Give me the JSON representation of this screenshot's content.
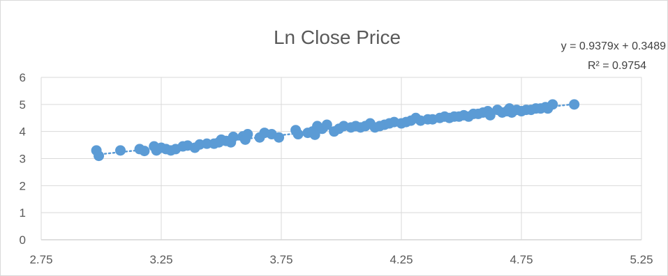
{
  "chart_data": {
    "type": "scatter",
    "title": "Ln Close Price",
    "xlabel": "",
    "ylabel": "",
    "xlim": [
      2.75,
      5.25
    ],
    "ylim": [
      0,
      6
    ],
    "x_ticks": [
      "2.75",
      "3.25",
      "3.75",
      "4.25",
      "4.75",
      "5.25"
    ],
    "y_ticks": [
      "0",
      "1",
      "2",
      "3",
      "4",
      "5",
      "6"
    ],
    "grid": true,
    "legend": "none",
    "series": [
      {
        "color": "#5b9bd5",
        "trendline": {
          "type": "linear",
          "slope": 0.9379,
          "intercept": 0.3489,
          "style": "dotted",
          "equation_label": "y = 0.9379x + 0.3489",
          "r2_label": "R² = 0.9754"
        },
        "points": [
          [
            2.98,
            3.3
          ],
          [
            2.99,
            3.1
          ],
          [
            3.08,
            3.3
          ],
          [
            3.16,
            3.35
          ],
          [
            3.18,
            3.28
          ],
          [
            3.22,
            3.45
          ],
          [
            3.23,
            3.3
          ],
          [
            3.25,
            3.4
          ],
          [
            3.27,
            3.35
          ],
          [
            3.29,
            3.3
          ],
          [
            3.31,
            3.35
          ],
          [
            3.34,
            3.45
          ],
          [
            3.36,
            3.48
          ],
          [
            3.39,
            3.4
          ],
          [
            3.41,
            3.52
          ],
          [
            3.44,
            3.55
          ],
          [
            3.47,
            3.55
          ],
          [
            3.49,
            3.6
          ],
          [
            3.5,
            3.7
          ],
          [
            3.52,
            3.65
          ],
          [
            3.54,
            3.6
          ],
          [
            3.55,
            3.8
          ],
          [
            3.59,
            3.82
          ],
          [
            3.6,
            3.7
          ],
          [
            3.61,
            3.9
          ],
          [
            3.66,
            3.78
          ],
          [
            3.68,
            3.95
          ],
          [
            3.71,
            3.9
          ],
          [
            3.74,
            3.78
          ],
          [
            3.81,
            4.05
          ],
          [
            3.82,
            3.9
          ],
          [
            3.86,
            3.95
          ],
          [
            3.88,
            4.0
          ],
          [
            3.89,
            3.88
          ],
          [
            3.9,
            4.2
          ],
          [
            3.92,
            4.1
          ],
          [
            3.94,
            4.25
          ],
          [
            3.97,
            4.0
          ],
          [
            3.99,
            4.1
          ],
          [
            4.01,
            4.2
          ],
          [
            4.04,
            4.15
          ],
          [
            4.06,
            4.2
          ],
          [
            4.08,
            4.15
          ],
          [
            4.1,
            4.2
          ],
          [
            4.12,
            4.3
          ],
          [
            4.14,
            4.15
          ],
          [
            4.16,
            4.2
          ],
          [
            4.18,
            4.25
          ],
          [
            4.2,
            4.3
          ],
          [
            4.22,
            4.35
          ],
          [
            4.25,
            4.3
          ],
          [
            4.27,
            4.35
          ],
          [
            4.29,
            4.4
          ],
          [
            4.31,
            4.5
          ],
          [
            4.33,
            4.4
          ],
          [
            4.36,
            4.45
          ],
          [
            4.38,
            4.45
          ],
          [
            4.41,
            4.5
          ],
          [
            4.43,
            4.55
          ],
          [
            4.45,
            4.5
          ],
          [
            4.47,
            4.55
          ],
          [
            4.49,
            4.55
          ],
          [
            4.51,
            4.6
          ],
          [
            4.53,
            4.55
          ],
          [
            4.55,
            4.65
          ],
          [
            4.57,
            4.65
          ],
          [
            4.59,
            4.7
          ],
          [
            4.61,
            4.75
          ],
          [
            4.62,
            4.6
          ],
          [
            4.65,
            4.8
          ],
          [
            4.67,
            4.7
          ],
          [
            4.69,
            4.75
          ],
          [
            4.7,
            4.85
          ],
          [
            4.71,
            4.7
          ],
          [
            4.73,
            4.8
          ],
          [
            4.75,
            4.75
          ],
          [
            4.77,
            4.8
          ],
          [
            4.79,
            4.8
          ],
          [
            4.81,
            4.85
          ],
          [
            4.83,
            4.85
          ],
          [
            4.85,
            4.9
          ],
          [
            4.86,
            4.85
          ],
          [
            4.88,
            5.0
          ],
          [
            4.97,
            5.0
          ]
        ]
      }
    ]
  }
}
